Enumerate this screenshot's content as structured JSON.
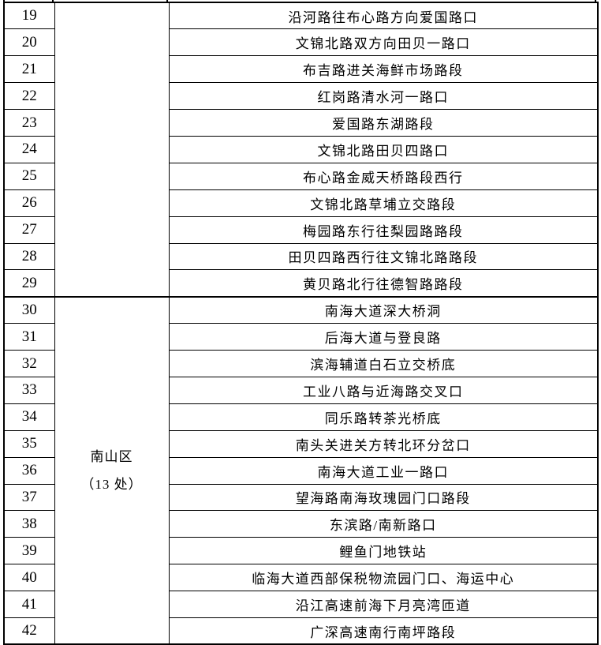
{
  "page": {
    "background_color": "#ffffff",
    "border_color": "#000000",
    "text_color": "#000000"
  },
  "table": {
    "groups": [
      {
        "district_lines": [],
        "rows": [
          {
            "no": "19",
            "location": "沿河路往布心路方向爱国路口"
          },
          {
            "no": "20",
            "location": "文锦北路双方向田贝一路口"
          },
          {
            "no": "21",
            "location": "布吉路进关海鲜市场路段"
          },
          {
            "no": "22",
            "location": "红岗路清水河一路口"
          },
          {
            "no": "23",
            "location": "爱国路东湖路段"
          },
          {
            "no": "24",
            "location": "文锦北路田贝四路口"
          },
          {
            "no": "25",
            "location": "布心路金威天桥路段西行"
          },
          {
            "no": "26",
            "location": "文锦北路草埔立交路段"
          },
          {
            "no": "27",
            "location": "梅园路东行往梨园路路段"
          },
          {
            "no": "28",
            "location": "田贝四路西行往文锦北路路段"
          },
          {
            "no": "29",
            "location": "黄贝路北行往德智路路段"
          }
        ]
      },
      {
        "district_lines": [
          "南山区",
          "（13 处）"
        ],
        "rows": [
          {
            "no": "30",
            "location": "南海大道深大桥洞"
          },
          {
            "no": "31",
            "location": "后海大道与登良路"
          },
          {
            "no": "32",
            "location": "滨海辅道白石立交桥底"
          },
          {
            "no": "33",
            "location": "工业八路与近海路交叉口"
          },
          {
            "no": "34",
            "location": "同乐路转茶光桥底"
          },
          {
            "no": "35",
            "location": "南头关进关方转北环分岔口"
          },
          {
            "no": "36",
            "location": "南海大道工业一路口"
          },
          {
            "no": "37",
            "location": "望海路南海玫瑰园门口路段"
          },
          {
            "no": "38",
            "location": "东滨路/南新路口"
          },
          {
            "no": "39",
            "location": "鲤鱼门地铁站"
          },
          {
            "no": "40",
            "location": "临海大道西部保税物流园门口、海运中心"
          },
          {
            "no": "41",
            "location": "沿江高速前海下月亮湾匝道"
          },
          {
            "no": "42",
            "location": "广深高速南行南坪路段"
          }
        ]
      }
    ]
  }
}
